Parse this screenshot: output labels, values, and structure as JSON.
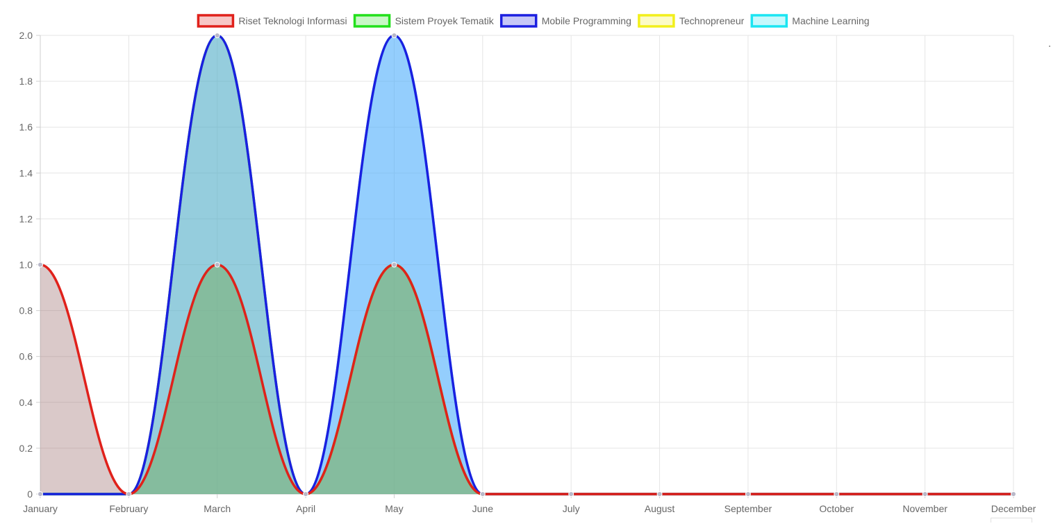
{
  "chart_data": {
    "type": "area",
    "categories": [
      "January",
      "February",
      "March",
      "April",
      "May",
      "June",
      "July",
      "August",
      "September",
      "October",
      "November",
      "December"
    ],
    "ylim": [
      0,
      2
    ],
    "yticks": [
      "0",
      "0.2",
      "0.4",
      "0.6",
      "0.8",
      "1.0",
      "1.2",
      "1.4",
      "1.6",
      "1.8",
      "2.0"
    ],
    "ytick_values": [
      0,
      0.2,
      0.4,
      0.6,
      0.8,
      1.0,
      1.2,
      1.4,
      1.6,
      1.8,
      2.0
    ],
    "grid": true,
    "legend_position": "top",
    "series": [
      {
        "name": "Riset Teknologi Informasi",
        "color": "#e0211b",
        "fill": "rgba(150,100,100,0.35)",
        "values": [
          1,
          0,
          1,
          0,
          1,
          0,
          0,
          0,
          0,
          0,
          0,
          0
        ]
      },
      {
        "name": "Sistem Proyek Tematik",
        "color": "#22e01b",
        "fill": "rgba(34,224,27,0.15)",
        "values": [
          0,
          0,
          2,
          0,
          1,
          0,
          0,
          0,
          0,
          0,
          0,
          0
        ]
      },
      {
        "name": "Mobile Programming",
        "color": "#1b1fe0",
        "fill": "rgba(100,160,255,0.55)",
        "values": [
          0,
          0,
          2,
          0,
          2,
          0,
          0,
          0,
          0,
          0,
          0,
          0
        ]
      },
      {
        "name": "Technopreneur",
        "color": "#f2ef1b",
        "fill": "rgba(220,210,60,0.2)",
        "values": [
          0,
          0,
          1,
          0,
          1,
          0,
          0,
          0,
          0,
          0,
          0,
          0
        ]
      },
      {
        "name": "Machine Learning",
        "color": "#1be5f2",
        "fill": "rgba(27,229,242,0.15)",
        "values": [
          0,
          0,
          1,
          0,
          2,
          0,
          0,
          0,
          0,
          0,
          0,
          0
        ]
      }
    ]
  }
}
